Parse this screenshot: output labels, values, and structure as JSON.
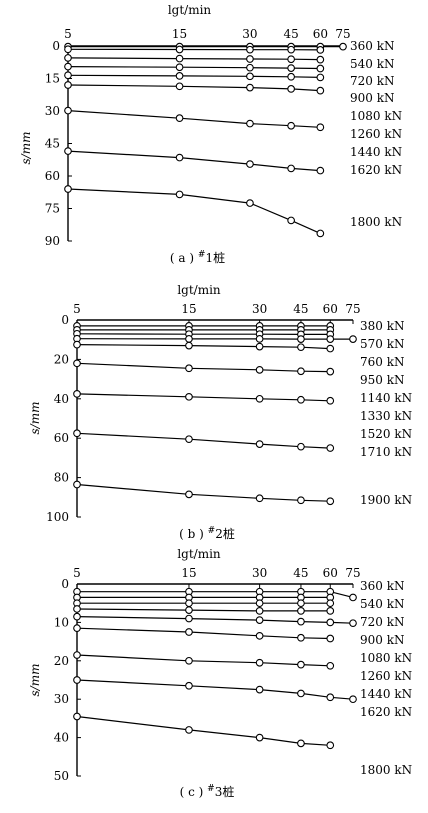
{
  "chart_data": [
    {
      "type": "line",
      "panel": "a",
      "caption_prefix": "( a ) ",
      "caption_sup": "#",
      "caption_main": "1桩",
      "xlabel": "lgt/min",
      "ylabel": "s/mm",
      "x_scale": "log",
      "x_ticks": [
        5,
        15,
        30,
        45,
        60,
        75
      ],
      "y_ticks": [
        0,
        15,
        30,
        45,
        60,
        75,
        90
      ],
      "ylim": [
        0,
        90
      ],
      "series": [
        {
          "name": "360 kN",
          "x": [
            5,
            15,
            30,
            45,
            60,
            75
          ],
          "values": [
            0.3,
            0.3,
            0.3,
            0.3,
            0.3,
            0.3
          ]
        },
        {
          "name": "540 kN",
          "x": [
            5,
            15,
            30,
            45,
            60
          ],
          "values": [
            1.5,
            1.6,
            1.7,
            1.7,
            1.8
          ]
        },
        {
          "name": "720 kN",
          "x": [
            5,
            15,
            30,
            45,
            60
          ],
          "values": [
            5.5,
            5.8,
            6.0,
            6.1,
            6.3
          ]
        },
        {
          "name": "900 kN",
          "x": [
            5,
            15,
            30,
            45,
            60
          ],
          "values": [
            9.5,
            9.8,
            10.0,
            10.2,
            10.4
          ]
        },
        {
          "name": "1080 kN",
          "x": [
            5,
            15,
            30,
            45,
            60
          ],
          "values": [
            13.5,
            13.8,
            14.0,
            14.2,
            14.5
          ]
        },
        {
          "name": "1260 kN",
          "x": [
            5,
            15,
            30,
            45,
            60
          ],
          "values": [
            18.0,
            18.6,
            19.2,
            19.8,
            20.6
          ]
        },
        {
          "name": "1440 kN",
          "x": [
            5,
            15,
            30,
            45,
            60
          ],
          "values": [
            29.8,
            33.3,
            35.8,
            36.8,
            37.5
          ]
        },
        {
          "name": "1620 kN",
          "x": [
            5,
            15,
            30,
            45,
            60
          ],
          "values": [
            48.5,
            51.5,
            54.5,
            56.5,
            57.5
          ]
        },
        {
          "name": "1800 kN",
          "x": [
            5,
            15,
            30,
            45,
            60
          ],
          "values": [
            66.0,
            68.5,
            72.5,
            80.5,
            86.5
          ]
        }
      ],
      "legend": [
        "360 kN",
        "540 kN",
        "720 kN",
        "900 kN",
        "1080 kN",
        "1260 kN",
        "1440 kN",
        "1620 kN",
        "1800 kN"
      ]
    },
    {
      "type": "line",
      "panel": "b",
      "caption_prefix": "( b ) ",
      "caption_sup": "#",
      "caption_main": "2桩",
      "xlabel": "lgt/min",
      "ylabel": "s/mm",
      "x_scale": "log",
      "x_ticks": [
        5,
        15,
        30,
        45,
        60,
        75
      ],
      "y_ticks": [
        0,
        20,
        40,
        60,
        80,
        100
      ],
      "ylim": [
        0,
        100
      ],
      "series": [
        {
          "name": "380 kN",
          "x": [
            5,
            15,
            30,
            45,
            60
          ],
          "values": [
            3.0,
            3.0,
            3.0,
            3.0,
            3.0
          ]
        },
        {
          "name": "570 kN",
          "x": [
            5,
            15,
            30,
            45,
            60
          ],
          "values": [
            5.0,
            5.0,
            5.0,
            5.0,
            5.0
          ]
        },
        {
          "name": "760 kN",
          "x": [
            5,
            15,
            30,
            45,
            60
          ],
          "values": [
            7.0,
            7.2,
            7.2,
            7.3,
            7.3
          ]
        },
        {
          "name": "950 kN",
          "x": [
            5,
            15,
            30,
            45,
            60,
            75
          ],
          "values": [
            9.5,
            9.6,
            9.6,
            9.7,
            9.7,
            9.7
          ]
        },
        {
          "name": "1140 kN",
          "x": [
            5,
            15,
            30,
            45,
            60
          ],
          "values": [
            12.5,
            13.0,
            13.5,
            13.8,
            14.5
          ]
        },
        {
          "name": "1330 kN",
          "x": [
            5,
            15,
            30,
            45,
            60
          ],
          "values": [
            22.0,
            24.5,
            25.3,
            26.0,
            26.2
          ]
        },
        {
          "name": "1520 kN",
          "x": [
            5,
            15,
            30,
            45,
            60
          ],
          "values": [
            37.5,
            39.0,
            40.0,
            40.5,
            41.0
          ]
        },
        {
          "name": "1710 kN",
          "x": [
            5,
            15,
            30,
            45,
            60
          ],
          "values": [
            57.5,
            60.5,
            63.0,
            64.3,
            65.0
          ]
        },
        {
          "name": "1900 kN",
          "x": [
            5,
            15,
            30,
            45,
            60
          ],
          "values": [
            83.5,
            88.5,
            90.5,
            91.5,
            92.0
          ]
        }
      ],
      "legend": [
        "380 kN",
        "570 kN",
        "760 kN",
        "950 kN",
        "1140 kN",
        "1330 kN",
        "1520 kN",
        "1710 kN",
        "1900 kN"
      ]
    },
    {
      "type": "line",
      "panel": "c",
      "caption_prefix": "( c ) ",
      "caption_sup": "#",
      "caption_main": "3桩",
      "xlabel": "lgt/min",
      "ylabel": "s/mm",
      "x_scale": "log",
      "x_ticks": [
        5,
        15,
        30,
        45,
        60,
        75
      ],
      "y_ticks": [
        0,
        10,
        20,
        30,
        40,
        50
      ],
      "ylim": [
        0,
        50
      ],
      "series": [
        {
          "name": "360 kN",
          "x": [
            5,
            15,
            30,
            45,
            60,
            75
          ],
          "values": [
            2.0,
            2.0,
            2.0,
            2.0,
            2.0,
            3.5
          ]
        },
        {
          "name": "540 kN",
          "x": [
            5,
            15,
            30,
            45,
            60
          ],
          "values": [
            3.5,
            3.5,
            3.5,
            3.5,
            3.5
          ]
        },
        {
          "name": "720 kN",
          "x": [
            5,
            15,
            30,
            45,
            60
          ],
          "values": [
            5.0,
            5.0,
            5.0,
            5.0,
            5.0
          ]
        },
        {
          "name": "900 kN",
          "x": [
            5,
            15,
            30,
            45,
            60
          ],
          "values": [
            6.5,
            6.8,
            7.0,
            7.0,
            7.0
          ]
        },
        {
          "name": "1080 kN",
          "x": [
            5,
            15,
            30,
            45,
            60,
            75
          ],
          "values": [
            8.5,
            9.0,
            9.4,
            9.8,
            10.0,
            10.2
          ]
        },
        {
          "name": "1260 kN",
          "x": [
            5,
            15,
            30,
            45,
            60
          ],
          "values": [
            11.5,
            12.5,
            13.5,
            14.0,
            14.2
          ]
        },
        {
          "name": "1440 kN",
          "x": [
            5,
            15,
            30,
            45,
            60
          ],
          "values": [
            18.5,
            20.0,
            20.5,
            21.0,
            21.3
          ]
        },
        {
          "name": "1620 kN",
          "x": [
            5,
            15,
            30,
            45,
            60,
            75
          ],
          "values": [
            25.0,
            26.5,
            27.5,
            28.5,
            29.5,
            30.0
          ]
        },
        {
          "name": "1800 kN",
          "x": [
            5,
            15,
            30,
            45,
            60
          ],
          "values": [
            34.5,
            38.0,
            40.0,
            41.5,
            42.0
          ]
        }
      ],
      "legend": [
        "360 kN",
        "540 kN",
        "720 kN",
        "900 kN",
        "1080 kN",
        "1260 kN",
        "1440 kN",
        "1620 kN",
        "1800 kN"
      ]
    }
  ]
}
